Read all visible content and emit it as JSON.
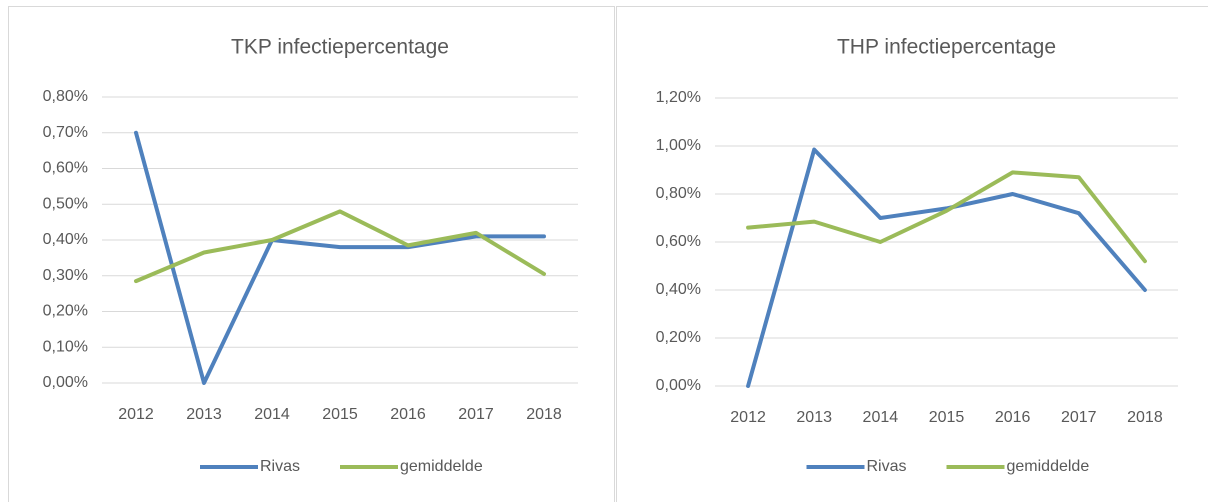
{
  "chart_data": [
    {
      "type": "line",
      "title": "TKP infectiepercentage",
      "categories": [
        "2012",
        "2013",
        "2014",
        "2015",
        "2016",
        "2017",
        "2018"
      ],
      "series": [
        {
          "name": "Rivas",
          "color": "#4f81bd",
          "values": [
            0.7,
            0.0,
            0.4,
            0.38,
            0.38,
            0.41,
            0.41
          ]
        },
        {
          "name": "gemiddelde",
          "color": "#9bbb59",
          "values": [
            0.285,
            0.365,
            0.4,
            0.48,
            0.385,
            0.42,
            0.305
          ]
        }
      ],
      "ylim": [
        0,
        0.8
      ],
      "yticks": [
        {
          "value": 0,
          "label": "0,00%"
        },
        {
          "value": 0.1,
          "label": "0,10%"
        },
        {
          "value": 0.2,
          "label": "0,20%"
        },
        {
          "value": 0.3,
          "label": "0,30%"
        },
        {
          "value": 0.4,
          "label": "0,40%"
        },
        {
          "value": 0.5,
          "label": "0,50%"
        },
        {
          "value": 0.6,
          "label": "0,60%"
        },
        {
          "value": 0.7,
          "label": "0,70%"
        },
        {
          "value": 0.8,
          "label": "0,80%"
        }
      ],
      "grid": true,
      "legend": "bottom"
    },
    {
      "type": "line",
      "title": "THP infectiepercentage",
      "categories": [
        "2012",
        "2013",
        "2014",
        "2015",
        "2016",
        "2017",
        "2018"
      ],
      "series": [
        {
          "name": "Rivas",
          "color": "#4f81bd",
          "values": [
            0.0,
            0.985,
            0.7,
            0.74,
            0.8,
            0.72,
            0.4
          ]
        },
        {
          "name": "gemiddelde",
          "color": "#9bbb59",
          "values": [
            0.66,
            0.685,
            0.6,
            0.73,
            0.89,
            0.87,
            0.52
          ]
        }
      ],
      "ylim": [
        0,
        1.2
      ],
      "yticks": [
        {
          "value": 0,
          "label": "0,00%"
        },
        {
          "value": 0.2,
          "label": "0,20%"
        },
        {
          "value": 0.4,
          "label": "0,40%"
        },
        {
          "value": 0.6,
          "label": "0,60%"
        },
        {
          "value": 0.8,
          "label": "0,80%"
        },
        {
          "value": 1.0,
          "label": "1,00%"
        },
        {
          "value": 1.2,
          "label": "1,20%"
        }
      ],
      "grid": true,
      "legend": "bottom"
    }
  ]
}
